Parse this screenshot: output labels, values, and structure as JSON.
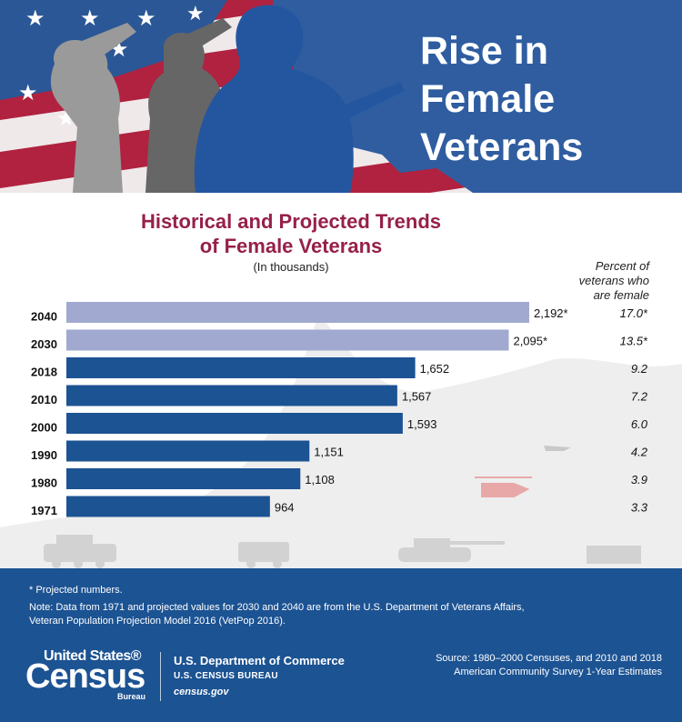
{
  "banner": {
    "title": "Rise in\nFemale\nVeterans",
    "colors": {
      "stripe_red": "#b0223f",
      "flag_blue": "#2b5796",
      "map_blue": "#2f5da0",
      "soldier_gray": "#9a9a9a",
      "soldier_dark": "#666666",
      "soldier_blue": "#2456a0"
    }
  },
  "chart": {
    "title": "Historical and Projected Trends\nof Female Veterans",
    "subtitle": "(In thousands)",
    "percent_header": "Percent of\nveterans who\nare female"
  },
  "chart_data": {
    "type": "bar",
    "orientation": "horizontal",
    "title": "Historical and Projected Trends of Female Veterans",
    "subtitle": "(In thousands)",
    "categories": [
      "2040",
      "2030",
      "2018",
      "2010",
      "2000",
      "1990",
      "1980",
      "1971"
    ],
    "values": [
      2192,
      2095,
      1652,
      1567,
      1593,
      1151,
      1108,
      964
    ],
    "value_labels": [
      "2,192*",
      "2,095*",
      "1,652",
      "1,567",
      "1,593",
      "1,151",
      "1,108",
      "964"
    ],
    "percent_header": "Percent of veterans who are female",
    "percent_female": [
      "17.0*",
      "13.5*",
      "9.2",
      "7.2",
      "6.0",
      "4.2",
      "3.9",
      "3.3"
    ],
    "projected": [
      true,
      true,
      false,
      false,
      false,
      false,
      false,
      false
    ],
    "xlim": [
      0,
      2192
    ],
    "colors": {
      "historical": "#1c5393",
      "projected": "#a2a9d0"
    },
    "grid": false
  },
  "footer": {
    "footnote": "* Projected numbers.",
    "note": "Note: Data from 1971 and projected values for 2030 and 2040 are from the U.S. Department of Veterans Affairs,\nVeteran Population Projection Model 2016 (VetPop 2016).",
    "logo_us": "United States®",
    "logo_census": "Census",
    "logo_bureau": "Bureau",
    "department": "U.S. Department of Commerce",
    "bureau": "U.S. CENSUS BUREAU",
    "website": "census.gov",
    "source": "Source: 1980–2000 Censuses, and 2010 and 2018\nAmerican Community Survey 1-Year Estimates",
    "background": "#1c5393"
  }
}
